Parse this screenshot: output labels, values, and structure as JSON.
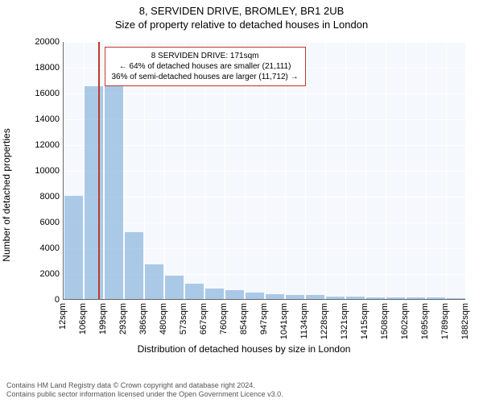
{
  "title": "8, SERVIDEN DRIVE, BROMLEY, BR1 2UB",
  "subtitle": "Size of property relative to detached houses in London",
  "y_axis_label": "Number of detached properties",
  "x_axis_label": "Distribution of detached houses by size in London",
  "chart": {
    "type": "histogram",
    "background_color": "#f5f8fc",
    "grid_color": "#ffffff",
    "bar_color": "#6ba3d6",
    "bar_opacity": 0.55,
    "marker_color": "#c0392b",
    "ylim": [
      0,
      20000
    ],
    "ytick_step": 2000,
    "yticks": [
      0,
      2000,
      4000,
      6000,
      8000,
      10000,
      12000,
      14000,
      16000,
      18000,
      20000
    ],
    "xticks": [
      "12sqm",
      "106sqm",
      "199sqm",
      "293sqm",
      "386sqm",
      "480sqm",
      "573sqm",
      "667sqm",
      "760sqm",
      "854sqm",
      "947sqm",
      "1041sqm",
      "1134sqm",
      "1228sqm",
      "1321sqm",
      "1415sqm",
      "1508sqm",
      "1602sqm",
      "1695sqm",
      "1789sqm",
      "1882sqm"
    ],
    "bars": [
      8000,
      16500,
      16500,
      5200,
      2700,
      1800,
      1200,
      800,
      700,
      500,
      400,
      300,
      300,
      200,
      200,
      150,
      120,
      120,
      100,
      80
    ],
    "marker_bin_index": 1,
    "marker_position_in_bin": 0.7,
    "marker_sqm": 171
  },
  "callout": {
    "line1": "8 SERVIDEN DRIVE: 171sqm",
    "line2": "← 64% of detached houses are smaller (21,111)",
    "line3": "36% of semi-detached houses are larger (11,712) →"
  },
  "footer_line1": "Contains HM Land Registry data © Crown copyright and database right 2024.",
  "footer_line2": "Contains public sector information licensed under the Open Government Licence v3.0."
}
